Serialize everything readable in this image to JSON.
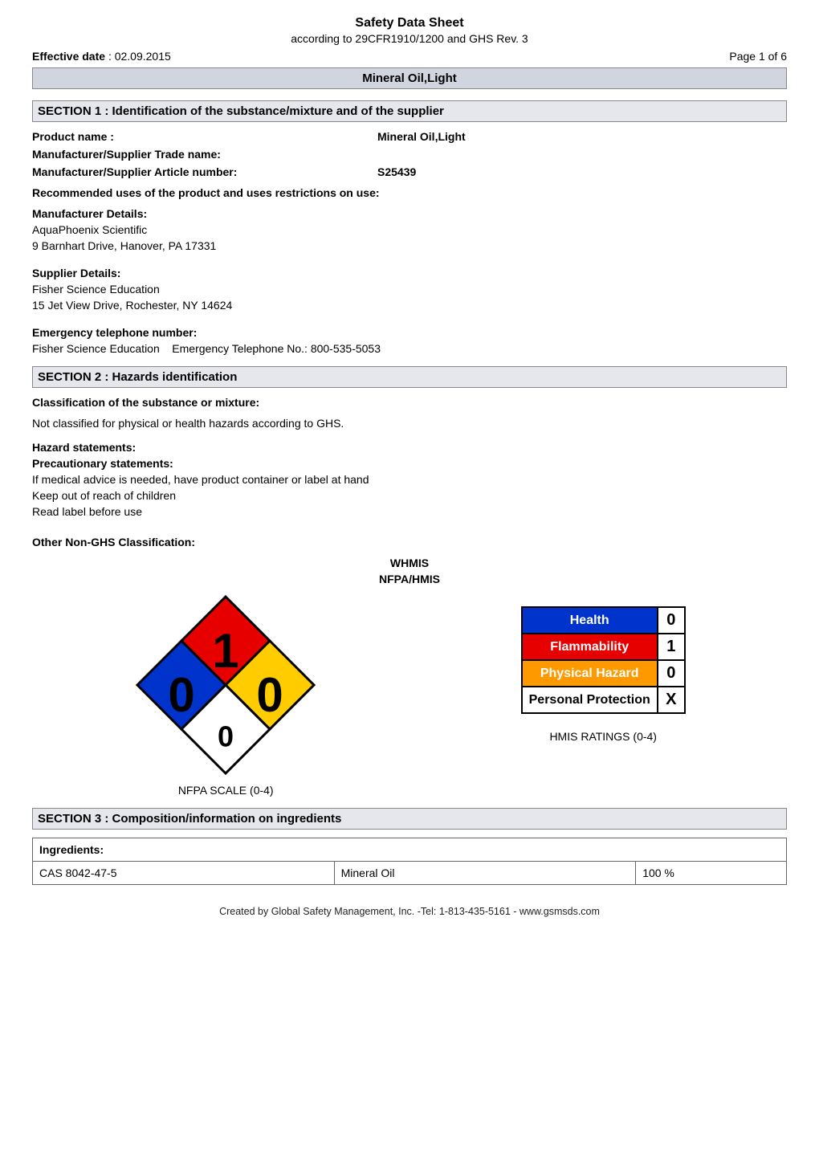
{
  "doc": {
    "title": "Safety Data Sheet",
    "subtitle": "according to 29CFR1910/1200 and GHS Rev. 3",
    "effective_date_label": "Effective date",
    "effective_date_value": "02.09.2015",
    "page_label": "Page 1 of 6",
    "banner": "Mineral Oil,Light",
    "footer": "Created by Global Safety Management, Inc. -Tel: 1-813-435-5161 - www.gsmsds.com"
  },
  "section1": {
    "heading": "SECTION 1 : Identification of the substance/mixture and of the supplier",
    "product_name_label": "Product name :",
    "product_name_value": "Mineral Oil,Light",
    "mfr_trade_name_label": "Manufacturer/Supplier Trade name:",
    "mfr_trade_name_value": "",
    "article_number_label": "Manufacturer/Supplier Article number:",
    "article_number_value": "S25439",
    "rec_uses_label": "Recommended uses of the product and uses restrictions on use:",
    "mfr_details_label": "Manufacturer Details:",
    "mfr_details_line1": "AquaPhoenix Scientific",
    "mfr_details_line2": "9 Barnhart Drive, Hanover, PA 17331",
    "supplier_details_label": "Supplier Details:",
    "supplier_details_line1": "Fisher Science Education",
    "supplier_details_line2": "15 Jet View Drive, Rochester, NY 14624",
    "emergency_label": "Emergency telephone number:",
    "emergency_line": "Fisher Science Education    Emergency Telephone No.: 800-535-5053"
  },
  "section2": {
    "heading": "SECTION 2 : Hazards identification",
    "classification_label": "Classification of the substance or mixture:",
    "classification_text": "Not classified for physical or health hazards according to GHS.",
    "hazard_statements_label": "Hazard statements:",
    "precautionary_label": "Precautionary statements:",
    "precautionary_line1": "If medical advice is needed, have product container or label at hand",
    "precautionary_line2": "Keep out of reach of children",
    "precautionary_line3": "Read label before use",
    "other_non_ghs_label": "Other Non-GHS Classification:",
    "whmis_label": "WHMIS",
    "nfpa_hmis_label": "NFPA/HMIS",
    "nfpa_caption": "NFPA SCALE (0-4)",
    "hmis_caption": "HMIS RATINGS (0-4)"
  },
  "nfpa": {
    "health": 0,
    "flammability": 1,
    "reactivity": 0,
    "special": "0",
    "colors": {
      "health": "#0033cc",
      "flammability": "#e60000",
      "reactivity": "#ffcc00",
      "special": "#ffffff",
      "text_on_color": "#000000",
      "border": "#000000"
    },
    "fontsize_main": 60,
    "fontsize_special": 36
  },
  "hmis": {
    "rows": [
      {
        "label": "Health",
        "value": "0",
        "bg": "#0033cc",
        "fg": "#ffffff"
      },
      {
        "label": "Flammability",
        "value": "1",
        "bg": "#e60000",
        "fg": "#ffffff"
      },
      {
        "label": "Physical Hazard",
        "value": "0",
        "bg": "#ff9900",
        "fg": "#ffffff"
      },
      {
        "label": "Personal Protection",
        "value": "X",
        "bg": "#ffffff",
        "fg": "#000000"
      }
    ],
    "label_fontsize": 16,
    "value_fontsize": 20
  },
  "section3": {
    "heading": "SECTION 3 : Composition/information on ingredients",
    "ingredients_label": "Ingredients:",
    "columns_widths": [
      "40%",
      "40%",
      "20%"
    ],
    "rows": [
      [
        "CAS 8042-47-5",
        "Mineral Oil",
        "100 %"
      ]
    ]
  }
}
